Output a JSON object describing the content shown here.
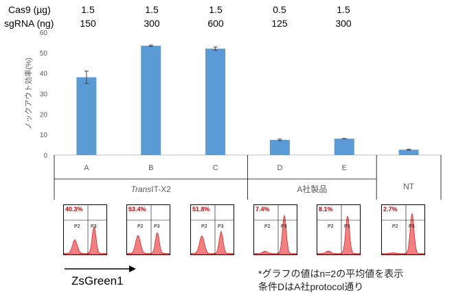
{
  "conditions": {
    "cas9_label": "Cas9 (µg)",
    "sgrna_label": "sgRNA (ng)",
    "cas9_values": [
      "1.5",
      "1.5",
      "1.5",
      "0.5",
      "1.5"
    ],
    "sgrna_values": [
      "150",
      "300",
      "600",
      "125",
      "300"
    ]
  },
  "chart_data": {
    "type": "bar",
    "categories": [
      "A",
      "B",
      "C",
      "D",
      "E",
      "NT"
    ],
    "values": [
      38.0,
      53.4,
      52.0,
      7.4,
      8.0,
      2.6
    ],
    "errors": [
      3.0,
      0.3,
      0.8,
      0.4,
      0.1,
      0.2
    ],
    "ylabel": "ノックアウト効率(%)",
    "ylim": [
      0,
      60
    ],
    "yticks": [
      "0",
      "10",
      "20",
      "30",
      "40",
      "50",
      "60"
    ],
    "bar_color": "#5b9bd5",
    "groups": [
      {
        "label_italic": "Trans",
        "label_rest": "IT-X2",
        "categories": [
          "A",
          "B",
          "C"
        ]
      },
      {
        "label_italic": "",
        "label_rest": "A社製品",
        "categories": [
          "D",
          "E"
        ]
      },
      {
        "label_italic": "",
        "label_rest": "NT",
        "categories": [
          "NT"
        ]
      }
    ]
  },
  "facs_panels": [
    {
      "percent": "40.3%",
      "p2": "P2",
      "p3": "P3"
    },
    {
      "percent": "53.4%",
      "p2": "P2",
      "p3": "P3"
    },
    {
      "percent": "51.8%",
      "p2": "P2",
      "p3": "P3"
    },
    {
      "percent": "7.4%",
      "p2": "P2",
      "p3": "P3"
    },
    {
      "percent": "8.1%",
      "p2": "P2",
      "p3": "P3"
    },
    {
      "percent": "2.7%",
      "p2": "P2",
      "p3": "P3"
    }
  ],
  "axis_label": "ZsGreen1",
  "notes": {
    "line1": "*グラフの値はn=2の平均値を表示",
    "line2": "条件DはA社protocol通り"
  }
}
